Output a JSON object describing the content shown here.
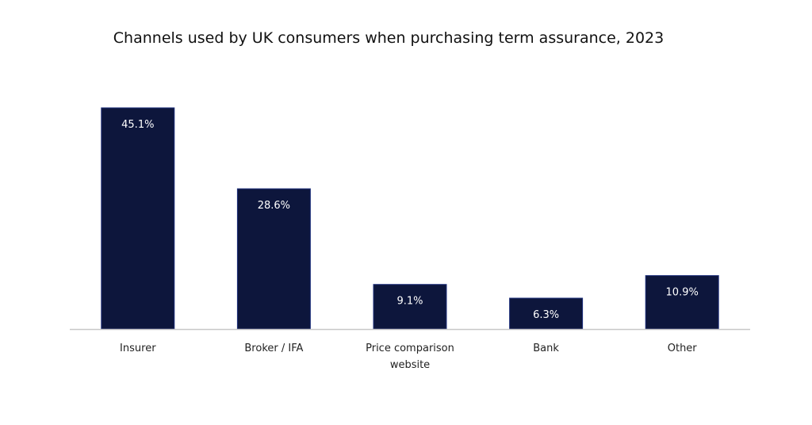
{
  "chart_data": {
    "type": "bar",
    "title": "Channels used by UK consumers when purchasing term assurance, 2023",
    "categories": [
      [
        "Insurer"
      ],
      [
        "Broker / IFA"
      ],
      [
        "Price comparison",
        "website"
      ],
      [
        "Bank"
      ],
      [
        "Other"
      ]
    ],
    "values": [
      45.1,
      28.6,
      9.1,
      6.3,
      10.9
    ],
    "value_labels": [
      "45.1%",
      "28.6%",
      "9.1%",
      "6.3%",
      "10.9%"
    ],
    "ylim": [
      0,
      100
    ],
    "grid": false,
    "legend": "none",
    "xlabel": "",
    "ylabel": ""
  },
  "colors": {
    "bar": "#0d163c",
    "bar_stroke": "#1c2e7a",
    "axis": "#c8c8c8"
  }
}
